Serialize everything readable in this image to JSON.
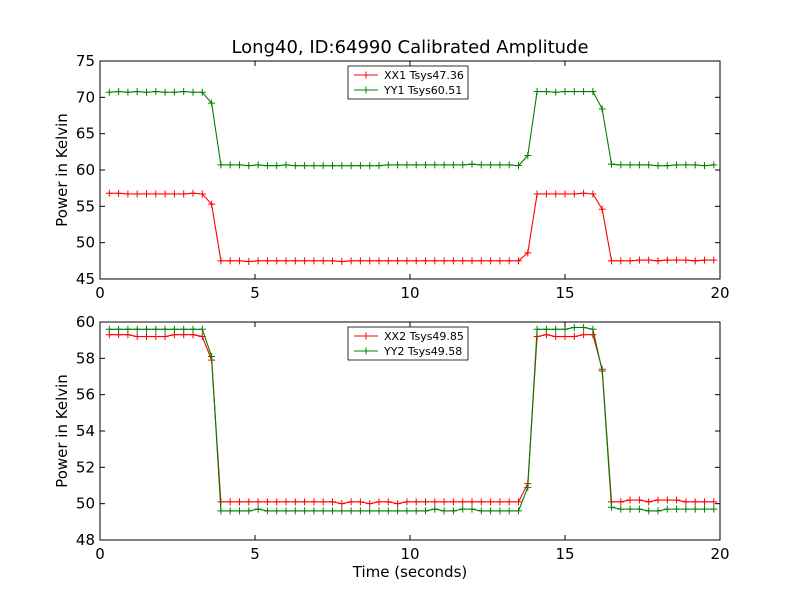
{
  "figure": {
    "title": "Long40, ID:64990 Calibrated Amplitude"
  },
  "chart_data": [
    {
      "type": "line",
      "title": "Long40, ID:64990 Calibrated Amplitude",
      "xlabel": "",
      "ylabel": "Power in Kelvin",
      "xlim": [
        0,
        20
      ],
      "ylim": [
        45,
        75
      ],
      "xticks": [
        0,
        5,
        10,
        15,
        20
      ],
      "yticks": [
        45,
        50,
        55,
        60,
        65,
        70,
        75
      ],
      "grid": false,
      "legend": "top-center",
      "x": [
        0.3,
        0.6,
        0.9,
        1.2,
        1.5,
        1.8,
        2.1,
        2.4,
        2.7,
        3.0,
        3.3,
        3.6,
        3.9,
        4.2,
        4.5,
        4.8,
        5.1,
        5.4,
        5.7,
        6.0,
        6.3,
        6.6,
        6.9,
        7.2,
        7.5,
        7.8,
        8.1,
        8.4,
        8.7,
        9.0,
        9.3,
        9.6,
        9.9,
        10.2,
        10.5,
        10.8,
        11.1,
        11.4,
        11.7,
        12.0,
        12.3,
        12.6,
        12.9,
        13.2,
        13.5,
        13.8,
        14.1,
        14.4,
        14.7,
        15.0,
        15.3,
        15.6,
        15.9,
        16.2,
        16.5,
        16.8,
        17.1,
        17.4,
        17.7,
        18.0,
        18.3,
        18.6,
        18.9,
        19.2,
        19.5,
        19.8
      ],
      "series": [
        {
          "name": "XX1 Tsys47.36",
          "color": "#ff0000",
          "values": [
            56.8,
            56.8,
            56.7,
            56.7,
            56.7,
            56.7,
            56.7,
            56.7,
            56.7,
            56.8,
            56.7,
            55.3,
            47.5,
            47.5,
            47.5,
            47.4,
            47.5,
            47.5,
            47.5,
            47.5,
            47.5,
            47.5,
            47.5,
            47.5,
            47.5,
            47.4,
            47.5,
            47.5,
            47.5,
            47.5,
            47.5,
            47.5,
            47.5,
            47.5,
            47.5,
            47.5,
            47.5,
            47.5,
            47.5,
            47.5,
            47.5,
            47.5,
            47.5,
            47.5,
            47.5,
            48.6,
            56.7,
            56.7,
            56.7,
            56.7,
            56.7,
            56.8,
            56.7,
            54.6,
            47.5,
            47.5,
            47.5,
            47.6,
            47.6,
            47.5,
            47.6,
            47.6,
            47.6,
            47.5,
            47.6,
            47.6
          ]
        },
        {
          "name": "YY1 Tsys60.51",
          "color": "#008000",
          "values": [
            70.7,
            70.8,
            70.7,
            70.8,
            70.7,
            70.8,
            70.7,
            70.7,
            70.8,
            70.7,
            70.7,
            69.2,
            60.7,
            60.7,
            60.7,
            60.6,
            60.7,
            60.6,
            60.6,
            60.7,
            60.6,
            60.6,
            60.6,
            60.6,
            60.6,
            60.6,
            60.6,
            60.6,
            60.6,
            60.6,
            60.7,
            60.7,
            60.7,
            60.7,
            60.7,
            60.7,
            60.7,
            60.7,
            60.7,
            60.8,
            60.7,
            60.7,
            60.7,
            60.7,
            60.6,
            62.0,
            70.8,
            70.8,
            70.7,
            70.8,
            70.8,
            70.8,
            70.8,
            68.4,
            60.8,
            60.7,
            60.7,
            60.7,
            60.7,
            60.6,
            60.6,
            60.7,
            60.7,
            60.7,
            60.6,
            60.7
          ]
        }
      ]
    },
    {
      "type": "line",
      "title": "",
      "xlabel": "Time (seconds)",
      "ylabel": "Power in Kelvin",
      "xlim": [
        0,
        20
      ],
      "ylim": [
        48,
        60
      ],
      "xticks": [
        0,
        5,
        10,
        15,
        20
      ],
      "yticks": [
        48,
        50,
        52,
        54,
        56,
        58,
        60
      ],
      "grid": false,
      "legend": "top-center",
      "x": [
        0.3,
        0.6,
        0.9,
        1.2,
        1.5,
        1.8,
        2.1,
        2.4,
        2.7,
        3.0,
        3.3,
        3.6,
        3.9,
        4.2,
        4.5,
        4.8,
        5.1,
        5.4,
        5.7,
        6.0,
        6.3,
        6.6,
        6.9,
        7.2,
        7.5,
        7.8,
        8.1,
        8.4,
        8.7,
        9.0,
        9.3,
        9.6,
        9.9,
        10.2,
        10.5,
        10.8,
        11.1,
        11.4,
        11.7,
        12.0,
        12.3,
        12.6,
        12.9,
        13.2,
        13.5,
        13.8,
        14.1,
        14.4,
        14.7,
        15.0,
        15.3,
        15.6,
        15.9,
        16.2,
        16.5,
        16.8,
        17.1,
        17.4,
        17.7,
        18.0,
        18.3,
        18.6,
        18.9,
        19.2,
        19.5,
        19.8
      ],
      "series": [
        {
          "name": "XX2 Tsys49.85",
          "color": "#ff0000",
          "values": [
            59.3,
            59.3,
            59.3,
            59.2,
            59.2,
            59.2,
            59.2,
            59.3,
            59.3,
            59.3,
            59.2,
            57.9,
            50.1,
            50.1,
            50.1,
            50.1,
            50.1,
            50.1,
            50.1,
            50.1,
            50.1,
            50.1,
            50.1,
            50.1,
            50.1,
            50.0,
            50.1,
            50.1,
            50.0,
            50.1,
            50.1,
            50.0,
            50.1,
            50.1,
            50.1,
            50.1,
            50.1,
            50.1,
            50.1,
            50.1,
            50.1,
            50.1,
            50.1,
            50.1,
            50.1,
            51.1,
            59.2,
            59.3,
            59.2,
            59.2,
            59.2,
            59.3,
            59.3,
            57.4,
            50.1,
            50.1,
            50.2,
            50.2,
            50.1,
            50.2,
            50.2,
            50.2,
            50.1,
            50.1,
            50.1,
            50.1
          ]
        },
        {
          "name": "YY2 Tsys49.58",
          "color": "#008000",
          "values": [
            59.6,
            59.6,
            59.6,
            59.6,
            59.6,
            59.6,
            59.6,
            59.6,
            59.6,
            59.6,
            59.6,
            58.1,
            49.6,
            49.6,
            49.6,
            49.6,
            49.7,
            49.6,
            49.6,
            49.6,
            49.6,
            49.6,
            49.6,
            49.6,
            49.6,
            49.6,
            49.6,
            49.6,
            49.6,
            49.6,
            49.6,
            49.6,
            49.6,
            49.6,
            49.6,
            49.7,
            49.6,
            49.6,
            49.7,
            49.7,
            49.6,
            49.6,
            49.6,
            49.6,
            49.6,
            50.9,
            59.6,
            59.6,
            59.6,
            59.6,
            59.7,
            59.7,
            59.6,
            57.3,
            49.8,
            49.7,
            49.7,
            49.7,
            49.6,
            49.6,
            49.7,
            49.7,
            49.7,
            49.7,
            49.7,
            49.7
          ]
        }
      ]
    }
  ]
}
